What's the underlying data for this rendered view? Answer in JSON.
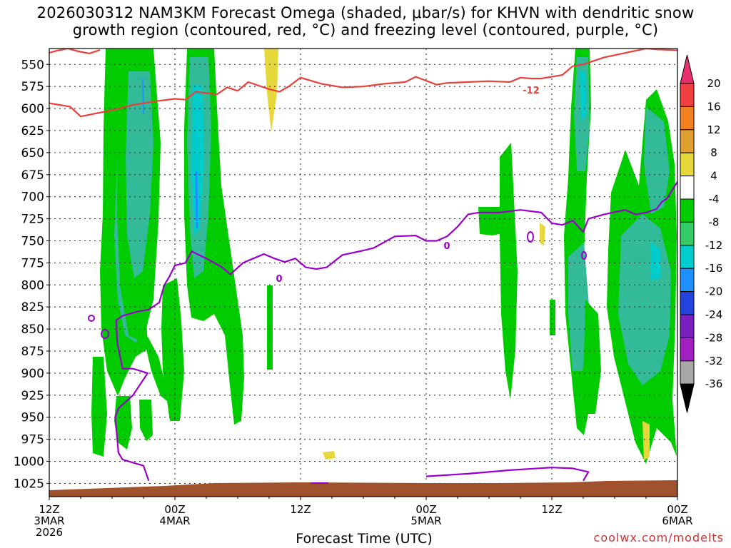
{
  "title": {
    "line1": "2026030312 NAM3KM Forecast Omega (shaded, μbar/s) for KHVN with dendritic snow",
    "line2": "growth region (contoured, red, °C) and freezing level (contoured, purple, °C)"
  },
  "xlabel": "Forecast Time (UTC)",
  "credit": "coolwx.com/modelts",
  "contour_labels": {
    "dgz": "-12",
    "freezing": "0"
  },
  "colors": {
    "dgz_contour": "#e8403a",
    "freezing_contour": "#9900cc",
    "terrain": "#a0522d",
    "green_bright": "#00cc00",
    "green_mid": "#33cc66",
    "teal": "#33bb99",
    "cyan": "#00cccc",
    "blue_light": "#1e90ff",
    "yellow": "#e6d83a"
  },
  "chart_data": {
    "type": "heatmap",
    "x_ticks": [
      {
        "top": "12Z",
        "mid": "3MAR",
        "bot": "2026"
      },
      {
        "top": "00Z",
        "mid": "4MAR",
        "bot": ""
      },
      {
        "top": "12Z",
        "mid": "",
        "bot": ""
      },
      {
        "top": "00Z",
        "mid": "5MAR",
        "bot": ""
      },
      {
        "top": "12Z",
        "mid": "",
        "bot": ""
      },
      {
        "top": "00Z",
        "mid": "6MAR",
        "bot": ""
      }
    ],
    "x_range_hours": [
      0,
      60
    ],
    "y_ticks": [
      "550",
      "575",
      "600",
      "625",
      "650",
      "675",
      "700",
      "725",
      "750",
      "775",
      "800",
      "825",
      "850",
      "875",
      "900",
      "925",
      "950",
      "975",
      "1000",
      "1025"
    ],
    "y_range_mb": [
      532,
      1040
    ],
    "colorbar": {
      "labels": [
        "20",
        "16",
        "12",
        "8",
        "4",
        "-4",
        "-8",
        "-12",
        "-16",
        "-20",
        "-24",
        "-28",
        "-32",
        "-36"
      ],
      "colors": [
        "#e8306f",
        "#f04040",
        "#f08020",
        "#e0a030",
        "#e6d83a",
        "#ffffff",
        "#00cc00",
        "#33cc66",
        "#00cccc",
        "#1e90ff",
        "#2244dd",
        "#7a20c0",
        "#a020c0",
        "#a8a8a8",
        "#000000"
      ]
    },
    "series": [
      {
        "name": "-12",
        "points_hr_mb": [
          [
            0,
            594
          ],
          [
            2,
            598
          ],
          [
            3,
            609
          ],
          [
            6,
            602
          ],
          [
            8,
            596
          ],
          [
            10,
            592
          ],
          [
            12,
            589
          ],
          [
            13,
            590
          ],
          [
            14,
            581
          ],
          [
            16,
            584
          ],
          [
            17,
            576
          ],
          [
            18,
            580
          ],
          [
            19,
            570
          ],
          [
            21,
            578
          ],
          [
            22,
            581
          ],
          [
            23,
            574
          ],
          [
            24,
            565
          ],
          [
            26,
            572
          ],
          [
            28,
            576
          ],
          [
            30,
            575
          ],
          [
            32,
            572
          ],
          [
            34,
            570
          ],
          [
            35,
            564
          ],
          [
            37,
            573
          ],
          [
            38,
            571
          ],
          [
            40,
            570
          ],
          [
            42,
            569
          ],
          [
            44,
            570
          ],
          [
            45,
            565
          ],
          [
            46,
            566
          ],
          [
            47,
            566
          ],
          [
            48,
            564
          ],
          [
            49,
            562
          ],
          [
            50,
            552
          ],
          [
            51,
            550
          ],
          [
            52,
            546
          ],
          [
            53,
            542
          ],
          [
            55,
            537
          ],
          [
            57,
            532
          ],
          [
            58,
            533
          ],
          [
            60,
            534
          ]
        ]
      },
      {
        "name": "0",
        "points_hr_mb": [
          [
            9.5,
            1022
          ],
          [
            9,
            1005
          ],
          [
            7,
            998
          ],
          [
            6.6,
            990
          ],
          [
            6.5,
            975
          ],
          [
            6.3,
            950
          ],
          [
            6.6,
            940
          ],
          [
            8,
            925
          ],
          [
            9.4,
            900
          ],
          [
            8,
            895
          ],
          [
            7,
            895
          ],
          [
            6.5,
            865
          ],
          [
            6.4,
            840
          ],
          [
            7,
            835
          ],
          [
            8.5,
            830
          ],
          [
            9.5,
            828
          ],
          [
            10.5,
            820
          ],
          [
            11,
            800
          ],
          [
            11.5,
            790
          ],
          [
            12,
            778
          ],
          [
            13,
            775
          ],
          [
            13.6,
            762
          ],
          [
            15,
            770
          ],
          [
            16.5,
            780
          ],
          [
            17.3,
            788
          ],
          [
            18.5,
            775
          ],
          [
            19.5,
            770
          ],
          [
            20.5,
            765
          ],
          [
            21.5,
            770
          ],
          [
            22.5,
            774
          ],
          [
            23.5,
            770
          ],
          [
            24.5,
            780
          ],
          [
            25.5,
            782
          ],
          [
            26.5,
            780
          ],
          [
            28,
            766
          ],
          [
            30,
            761
          ],
          [
            31,
            758
          ],
          [
            33,
            745
          ],
          [
            35,
            744
          ],
          [
            36,
            750
          ],
          [
            37,
            750
          ],
          [
            38,
            745
          ],
          [
            39,
            734
          ],
          [
            40,
            720
          ],
          [
            41,
            718
          ],
          [
            43,
            718
          ],
          [
            45,
            715
          ],
          [
            47,
            718
          ],
          [
            48,
            730
          ],
          [
            49,
            732
          ],
          [
            50,
            727
          ],
          [
            51,
            740
          ],
          [
            51.5,
            725
          ],
          [
            53,
            720
          ],
          [
            55,
            715
          ],
          [
            56,
            720
          ],
          [
            57,
            718
          ],
          [
            58,
            714
          ],
          [
            58.5,
            706
          ],
          [
            59,
            702
          ],
          [
            60,
            683
          ]
        ]
      },
      {
        "name": "0",
        "points_hr_mb": [
          [
            36,
            1017
          ],
          [
            40,
            1014
          ],
          [
            44,
            1010
          ],
          [
            48,
            1007
          ],
          [
            50,
            1008
          ],
          [
            51.5,
            1012
          ],
          [
            51,
            1022
          ]
        ]
      }
    ]
  }
}
